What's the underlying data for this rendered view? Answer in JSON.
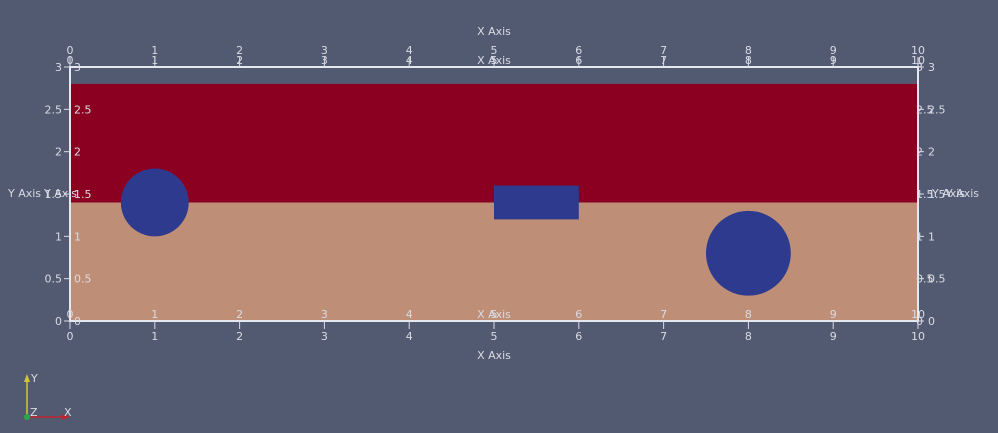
{
  "colors": {
    "background": "#525a72",
    "upper_layer": "#8b0020",
    "lower_layer": "#bf8e76",
    "inclusion": "#2e3a8e",
    "frame": "#e6e8f0",
    "axis_text": "#d9dbe3"
  },
  "axes": {
    "x_label": "X Axis",
    "y_label": "Y Axis",
    "x_ticks": [
      "0",
      "1",
      "2",
      "3",
      "4",
      "5",
      "6",
      "7",
      "8",
      "9",
      "10"
    ],
    "y_ticks": [
      "0",
      "0.5",
      "1",
      "1.5",
      "2",
      "2.5",
      "3"
    ],
    "x_range": [
      0,
      10
    ],
    "y_range": [
      0,
      3
    ]
  },
  "scene": {
    "upper_layer": {
      "x": [
        0,
        10
      ],
      "y": [
        1.4,
        2.8
      ]
    },
    "lower_layer": {
      "x": [
        0,
        10
      ],
      "y": [
        0,
        1.4
      ]
    },
    "circle_left": {
      "cx": 1,
      "cy": 1.4,
      "r": 0.4
    },
    "circle_right": {
      "cx": 8,
      "cy": 0.8,
      "r": 0.5
    },
    "rectangle": {
      "x": [
        5,
        6
      ],
      "y": [
        1.2,
        1.6
      ]
    }
  },
  "orientation_axes": {
    "x": "X",
    "y": "Y",
    "z": "Z"
  }
}
